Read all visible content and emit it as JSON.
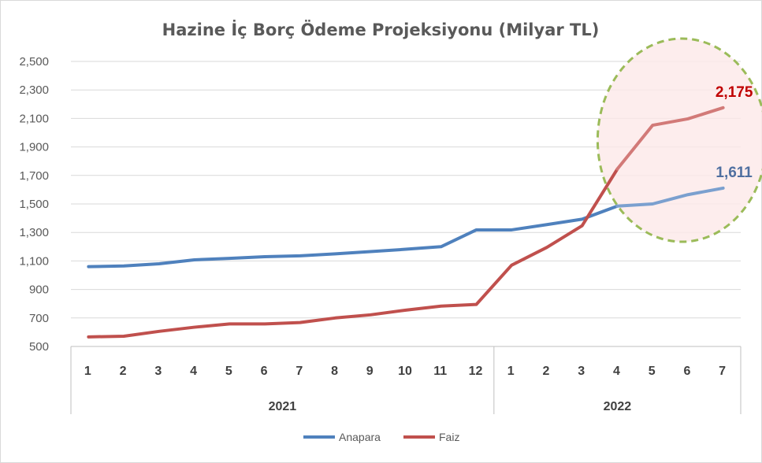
{
  "chart_data": {
    "type": "line",
    "title": "Hazine İç Borç Ödeme Projeksiyonu (Milyar TL)",
    "ylim": [
      500,
      2500
    ],
    "yticks": [
      "500",
      "700",
      "900",
      "1,100",
      "1,300",
      "1,500",
      "1,700",
      "1,900",
      "2,100",
      "2,300",
      "2,500"
    ],
    "ytick_values": [
      500,
      700,
      900,
      1100,
      1300,
      1500,
      1700,
      1900,
      2100,
      2300,
      2500
    ],
    "categories": [
      "1",
      "2",
      "3",
      "4",
      "5",
      "6",
      "7",
      "8",
      "9",
      "10",
      "11",
      "12",
      "1",
      "2",
      "3",
      "4",
      "5",
      "6",
      "7"
    ],
    "groups": [
      {
        "label": "2021",
        "count": 12
      },
      {
        "label": "2022",
        "count": 7
      }
    ],
    "series": [
      {
        "name": "Anapara",
        "color": "#4f81bd",
        "highlight_color": "#7ba0cf",
        "values": [
          1060,
          1065,
          1080,
          1108,
          1118,
          1130,
          1136,
          1150,
          1166,
          1182,
          1200,
          1318,
          1318,
          1355,
          1393,
          1485,
          1500,
          1565,
          1611
        ]
      },
      {
        "name": "Faiz",
        "color": "#c0504d",
        "highlight_color": "#d27a78",
        "values": [
          567,
          572,
          606,
          635,
          658,
          658,
          668,
          700,
          722,
          755,
          783,
          795,
          1070,
          1195,
          1347,
          1745,
          2052,
          2097,
          2175
        ]
      }
    ],
    "data_labels": [
      {
        "series": "Faiz",
        "index": 18,
        "text": "2,175",
        "color": "#c00000"
      },
      {
        "series": "Anapara",
        "index": 18,
        "text": "1,611",
        "color": "#4f6fa0"
      }
    ],
    "highlight_from_index": 16,
    "annotation": {
      "shape": "dashed-ellipse",
      "stroke": "#9bbb59",
      "fill": "#fce9e9"
    },
    "legend": {
      "position": "bottom",
      "entries": [
        "Anapara",
        "Faiz"
      ]
    },
    "grid": true
  }
}
